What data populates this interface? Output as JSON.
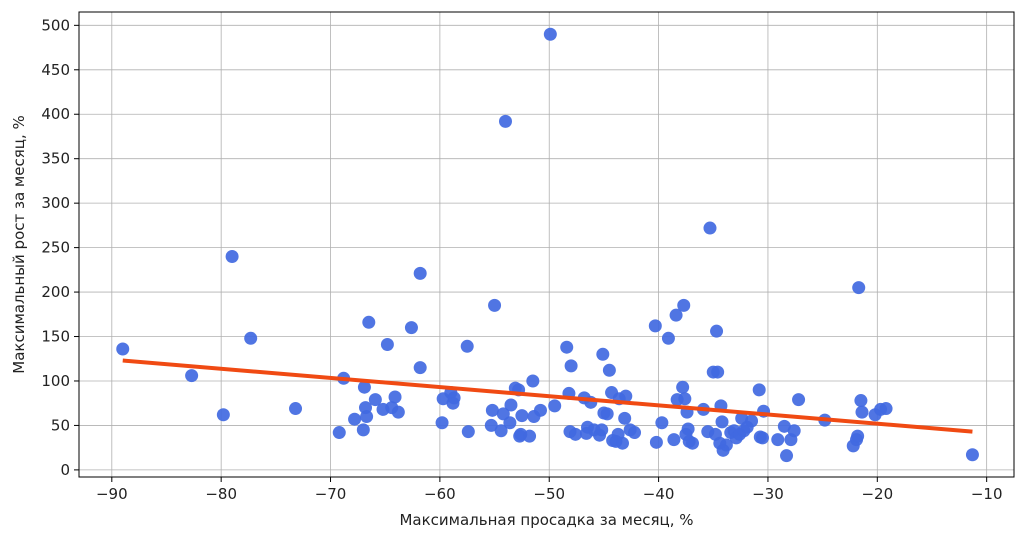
{
  "chart_data": {
    "type": "scatter",
    "title": "",
    "xlabel": "Максимальная просадка за месяц, %",
    "ylabel": "Максимальный рост за месяц, %",
    "xlim": [
      -93,
      -7.5
    ],
    "ylim": [
      -8,
      515
    ],
    "x_ticks": [
      -90,
      -80,
      -70,
      -60,
      -50,
      -40,
      -30,
      -20,
      -10
    ],
    "y_ticks": [
      0,
      50,
      100,
      150,
      200,
      250,
      300,
      350,
      400,
      450,
      500
    ],
    "grid": true,
    "colors": {
      "points": "#4169e1",
      "trend": "#f04a13"
    },
    "series": [
      {
        "type": "scatter",
        "points": [
          [
            -89,
            136
          ],
          [
            -82.7,
            106
          ],
          [
            -79.8,
            62
          ],
          [
            -79,
            240
          ],
          [
            -77.3,
            148
          ],
          [
            -73.2,
            69
          ],
          [
            -69.2,
            42
          ],
          [
            -68.8,
            103
          ],
          [
            -67.8,
            57
          ],
          [
            -67,
            45
          ],
          [
            -66.9,
            93
          ],
          [
            -66.8,
            70
          ],
          [
            -66.7,
            60
          ],
          [
            -66.5,
            166
          ],
          [
            -65.9,
            79
          ],
          [
            -65.2,
            68
          ],
          [
            -64.8,
            141
          ],
          [
            -64.4,
            70
          ],
          [
            -64.1,
            82
          ],
          [
            -63.8,
            65
          ],
          [
            -62.6,
            160
          ],
          [
            -61.8,
            221
          ],
          [
            -61.8,
            115
          ],
          [
            -59.8,
            53
          ],
          [
            -59.7,
            80
          ],
          [
            -59,
            87
          ],
          [
            -58.8,
            75
          ],
          [
            -58.7,
            81
          ],
          [
            -57.5,
            139
          ],
          [
            -57.4,
            43
          ],
          [
            -55.3,
            50
          ],
          [
            -55.2,
            67
          ],
          [
            -55,
            185
          ],
          [
            -54.4,
            44
          ],
          [
            -54.2,
            63
          ],
          [
            -54,
            392
          ],
          [
            -53.6,
            53
          ],
          [
            -53.5,
            73
          ],
          [
            -53.1,
            92
          ],
          [
            -52.8,
            90
          ],
          [
            -52.7,
            38
          ],
          [
            -52.6,
            40
          ],
          [
            -52.5,
            61
          ],
          [
            -51.8,
            38
          ],
          [
            -51.5,
            100
          ],
          [
            -51.4,
            60
          ],
          [
            -50.8,
            67
          ],
          [
            -49.9,
            490
          ],
          [
            -49.5,
            72
          ],
          [
            -48.4,
            138
          ],
          [
            -48.2,
            86
          ],
          [
            -48.1,
            43
          ],
          [
            -48,
            117
          ],
          [
            -47.6,
            40
          ],
          [
            -46.8,
            81
          ],
          [
            -46.6,
            41
          ],
          [
            -46.5,
            48
          ],
          [
            -46.2,
            76
          ],
          [
            -45.9,
            45
          ],
          [
            -45.4,
            39
          ],
          [
            -45.2,
            45
          ],
          [
            -45.1,
            130
          ],
          [
            -45,
            64
          ],
          [
            -44.7,
            63
          ],
          [
            -44.5,
            112
          ],
          [
            -44.3,
            87
          ],
          [
            -44.2,
            33
          ],
          [
            -43.9,
            32
          ],
          [
            -43.7,
            40
          ],
          [
            -43.6,
            80
          ],
          [
            -43.3,
            30
          ],
          [
            -43.1,
            58
          ],
          [
            -43,
            83
          ],
          [
            -42.6,
            45
          ],
          [
            -42.2,
            42
          ],
          [
            -40.3,
            162
          ],
          [
            -40.2,
            31
          ],
          [
            -39.7,
            53
          ],
          [
            -39.1,
            148
          ],
          [
            -38.6,
            34
          ],
          [
            -38.4,
            174
          ],
          [
            -38.3,
            79
          ],
          [
            -37.8,
            93
          ],
          [
            -37.7,
            185
          ],
          [
            -37.6,
            80
          ],
          [
            -37.5,
            40
          ],
          [
            -37.4,
            65
          ],
          [
            -37.3,
            46
          ],
          [
            -37.2,
            32
          ],
          [
            -36.9,
            30
          ],
          [
            -35.9,
            68
          ],
          [
            -35.5,
            43
          ],
          [
            -35.3,
            272
          ],
          [
            -35,
            110
          ],
          [
            -34.8,
            40
          ],
          [
            -34.7,
            156
          ],
          [
            -34.6,
            110
          ],
          [
            -34.4,
            30
          ],
          [
            -34.3,
            72
          ],
          [
            -34.2,
            54
          ],
          [
            -34.1,
            22
          ],
          [
            -33.8,
            28
          ],
          [
            -33.4,
            42
          ],
          [
            -33.1,
            44
          ],
          [
            -32.9,
            36
          ],
          [
            -32.6,
            40
          ],
          [
            -32.4,
            58
          ],
          [
            -32.2,
            44
          ],
          [
            -31.9,
            48
          ],
          [
            -31.5,
            55
          ],
          [
            -30.8,
            90
          ],
          [
            -30.7,
            37
          ],
          [
            -30.5,
            36
          ],
          [
            -30.4,
            66
          ],
          [
            -29.1,
            34
          ],
          [
            -28.5,
            49
          ],
          [
            -28.3,
            16
          ],
          [
            -27.9,
            34
          ],
          [
            -27.6,
            44
          ],
          [
            -27.2,
            79
          ],
          [
            -24.8,
            56
          ],
          [
            -22.2,
            27
          ],
          [
            -21.9,
            34
          ],
          [
            -21.8,
            38
          ],
          [
            -21.7,
            205
          ],
          [
            -21.5,
            78
          ],
          [
            -21.4,
            65
          ],
          [
            -20.2,
            62
          ],
          [
            -19.7,
            68
          ],
          [
            -19.2,
            69
          ],
          [
            -11.3,
            17
          ]
        ]
      },
      {
        "type": "line",
        "points": [
          [
            -89,
            123
          ],
          [
            -11.3,
            43
          ]
        ]
      }
    ]
  }
}
